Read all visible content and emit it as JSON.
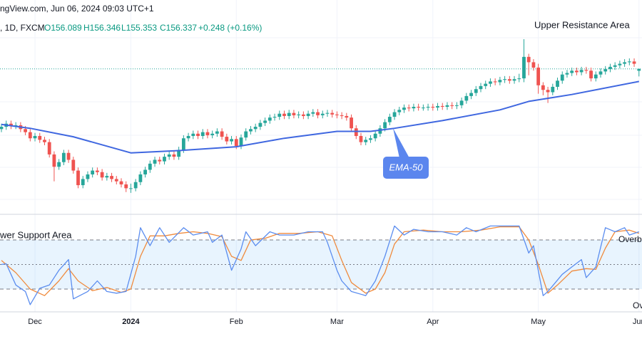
{
  "chart_data": {
    "type": "candlestick",
    "header": {
      "source": "ngView.com, Jun 06, 2024 09:03 UTC+1",
      "symbol": ", 1D, FXCM",
      "ohlc": [
        "O156.089",
        "H156.346",
        "L155.353",
        "C156.337",
        "+0.248 (+0.16%)"
      ]
    },
    "categories": [
      null,
      null,
      null,
      null,
      null,
      null,
      null,
      "Dec",
      null,
      null,
      null,
      null,
      null,
      null,
      null,
      null,
      null,
      null,
      null,
      null,
      null,
      null,
      null,
      null,
      null,
      null,
      null,
      "2024",
      null,
      null,
      null,
      null,
      null,
      null,
      null,
      null,
      null,
      null,
      null,
      null,
      null,
      null,
      null,
      null,
      null,
      null,
      null,
      null,
      null,
      "Feb",
      null,
      null,
      null,
      null,
      null,
      null,
      null,
      null,
      null,
      null,
      null,
      null,
      null,
      null,
      null,
      null,
      null,
      null,
      null,
      null,
      "Mar",
      null,
      null,
      null,
      null,
      null,
      null,
      null,
      null,
      null,
      null,
      null,
      null,
      null,
      null,
      null,
      null,
      null,
      null,
      null,
      "Apr",
      null,
      null,
      null,
      null,
      null,
      null,
      null,
      null,
      null,
      null,
      null,
      null,
      null,
      null,
      null,
      null,
      null,
      null,
      null,
      null,
      null,
      "May",
      null,
      null,
      null,
      null,
      null,
      null,
      null,
      null,
      null,
      null,
      null,
      null,
      null,
      null,
      null,
      null,
      null,
      null,
      null,
      null,
      "Jun"
    ],
    "open": [
      148.5,
      148.8,
      149.2,
      148.9,
      149.0,
      148.5,
      148.1,
      147.3,
      147.6,
      147.1,
      146.8,
      145.2,
      143.6,
      144.2,
      145.4,
      144.5,
      143.1,
      141.2,
      142.0,
      142.6,
      143.1,
      142.9,
      142.2,
      142.4,
      142.0,
      141.7,
      141.3,
      140.8,
      140.8,
      141.6,
      142.6,
      143.2,
      144.0,
      144.5,
      144.3,
      144.9,
      145.2,
      144.9,
      145.8,
      147.3,
      147.6,
      147.9,
      147.6,
      148.1,
      147.7,
      147.9,
      148.2,
      147.5,
      146.9,
      147.2,
      146.3,
      147.4,
      148.2,
      148.5,
      148.8,
      149.3,
      149.6,
      150.0,
      150.1,
      150.5,
      150.2,
      150.6,
      150.3,
      150.4,
      150.2,
      150.5,
      150.7,
      150.3,
      150.5,
      150.6,
      150.4,
      150.3,
      150.2,
      150.0,
      148.6,
      147.6,
      146.8,
      147.1,
      147.3,
      147.9,
      148.6,
      149.4,
      150.1,
      150.7,
      151.0,
      151.3,
      151.2,
      151.4,
      151.3,
      151.3,
      151.4,
      151.3,
      151.5,
      151.4,
      151.6,
      151.5,
      151.6,
      152.2,
      152.8,
      153.2,
      153.7,
      154.1,
      154.4,
      154.7,
      154.6,
      154.9,
      155.0,
      154.8,
      155.0,
      155.1,
      157.9,
      157.2,
      156.5,
      154.2,
      153.6,
      153.3,
      154.0,
      154.8,
      155.6,
      155.8,
      156.1,
      155.9,
      156.2,
      156.1,
      155.1,
      155.6,
      156.0,
      156.3,
      156.6,
      156.8,
      157.0,
      157.2,
      157.3,
      156.089
    ],
    "high": [
      149.2,
      149.6,
      149.6,
      149.4,
      149.4,
      148.9,
      148.5,
      148.0,
      148.0,
      147.5,
      147.2,
      145.6,
      144.6,
      145.8,
      145.8,
      144.9,
      143.5,
      142.4,
      143.0,
      143.5,
      143.5,
      143.3,
      142.8,
      142.8,
      142.4,
      142.1,
      141.7,
      141.4,
      142.0,
      143.0,
      143.6,
      144.4,
      144.9,
      144.9,
      145.3,
      145.6,
      145.6,
      146.2,
      147.7,
      148.0,
      148.3,
      148.3,
      148.5,
      148.5,
      148.3,
      148.6,
      148.6,
      147.9,
      147.6,
      147.6,
      147.8,
      148.6,
      148.9,
      149.2,
      149.7,
      150.0,
      150.4,
      150.5,
      150.9,
      150.9,
      151.0,
      151.0,
      150.8,
      150.8,
      150.9,
      151.1,
      151.1,
      150.9,
      151.0,
      151.0,
      150.8,
      150.7,
      150.6,
      150.4,
      149.0,
      148.0,
      147.5,
      147.7,
      148.3,
      149.0,
      149.8,
      150.5,
      151.1,
      151.4,
      151.7,
      151.7,
      151.8,
      151.8,
      151.7,
      151.8,
      151.8,
      151.9,
      151.9,
      152.0,
      152.0,
      152.0,
      152.6,
      153.2,
      153.6,
      154.1,
      154.5,
      154.8,
      155.1,
      155.1,
      155.3,
      155.4,
      155.4,
      155.4,
      155.7,
      160.2,
      158.3,
      157.6,
      157.0,
      154.6,
      154.0,
      154.4,
      155.2,
      156.0,
      156.2,
      156.5,
      156.5,
      156.6,
      156.6,
      156.5,
      156.0,
      156.4,
      156.7,
      157.0,
      157.2,
      157.4,
      157.6,
      157.7,
      157.7,
      156.346
    ],
    "low": [
      148.1,
      148.4,
      148.5,
      148.5,
      148.1,
      147.7,
      146.9,
      146.9,
      146.7,
      146.4,
      144.8,
      141.7,
      143.2,
      143.8,
      144.1,
      142.7,
      140.8,
      140.8,
      141.6,
      142.2,
      142.5,
      141.8,
      141.8,
      141.6,
      141.3,
      140.9,
      140.3,
      140.2,
      140.4,
      141.2,
      142.2,
      142.8,
      143.6,
      143.9,
      143.9,
      144.5,
      144.5,
      144.5,
      145.4,
      146.9,
      147.2,
      147.2,
      147.2,
      147.3,
      147.3,
      147.5,
      147.1,
      146.5,
      146.5,
      145.9,
      145.9,
      147.0,
      147.8,
      148.1,
      148.4,
      148.9,
      149.2,
      149.6,
      149.7,
      149.8,
      149.8,
      149.9,
      149.9,
      149.8,
      149.8,
      150.1,
      149.9,
      149.9,
      150.1,
      150.0,
      149.9,
      149.8,
      149.6,
      148.2,
      147.2,
      146.4,
      146.4,
      146.7,
      146.9,
      147.5,
      148.2,
      149.0,
      149.7,
      150.3,
      150.6,
      150.8,
      150.8,
      150.9,
      150.9,
      150.9,
      150.9,
      150.9,
      151.0,
      151.0,
      151.1,
      151.1,
      151.2,
      151.8,
      152.4,
      152.8,
      153.3,
      153.7,
      154.0,
      154.2,
      154.2,
      154.5,
      154.4,
      154.4,
      154.6,
      154.6,
      155.5,
      156.1,
      153.1,
      152.9,
      151.9,
      152.9,
      153.6,
      154.4,
      155.2,
      155.4,
      155.5,
      155.5,
      155.7,
      154.7,
      154.7,
      155.2,
      155.6,
      155.9,
      156.2,
      156.4,
      156.6,
      156.8,
      156.6,
      155.353
    ],
    "close": [
      148.8,
      149.2,
      148.9,
      149.0,
      148.5,
      148.1,
      147.3,
      147.6,
      147.1,
      146.8,
      145.2,
      143.6,
      144.2,
      145.4,
      144.5,
      143.1,
      141.2,
      142.0,
      142.6,
      143.1,
      142.9,
      142.2,
      142.4,
      142.0,
      141.7,
      141.3,
      140.8,
      140.8,
      141.6,
      142.6,
      143.2,
      144.0,
      144.5,
      144.3,
      144.9,
      145.2,
      144.9,
      145.8,
      147.3,
      147.6,
      147.9,
      147.6,
      148.1,
      147.7,
      147.9,
      148.2,
      147.5,
      146.9,
      147.2,
      146.3,
      147.4,
      148.2,
      148.5,
      148.8,
      149.3,
      149.6,
      150.0,
      150.1,
      150.5,
      150.2,
      150.6,
      150.3,
      150.4,
      150.2,
      150.5,
      150.7,
      150.3,
      150.5,
      150.6,
      150.4,
      150.3,
      150.2,
      150.0,
      148.6,
      147.6,
      146.8,
      147.1,
      147.3,
      147.9,
      148.6,
      149.4,
      150.1,
      150.7,
      151.0,
      151.3,
      151.2,
      151.4,
      151.3,
      151.3,
      151.4,
      151.3,
      151.5,
      151.4,
      151.6,
      151.5,
      151.6,
      152.2,
      152.8,
      153.2,
      153.7,
      154.1,
      154.4,
      154.7,
      154.6,
      154.9,
      155.0,
      154.8,
      155.0,
      155.1,
      157.9,
      157.2,
      156.5,
      154.2,
      153.6,
      153.3,
      154.0,
      154.8,
      155.6,
      155.8,
      156.1,
      155.9,
      156.2,
      156.1,
      155.1,
      155.6,
      156.0,
      156.3,
      156.6,
      156.8,
      157.0,
      157.2,
      157.3,
      157.0,
      156.337
    ],
    "up_color": "#26a69a",
    "down_color": "#ef5350",
    "ylim": [
      137.5,
      165.3
    ],
    "grid": true,
    "last_price_line": true,
    "ema": {
      "name": "EMA-50",
      "color": "#3f67e0",
      "x": [
        0,
        6,
        15,
        27,
        37,
        49,
        59,
        70,
        77,
        82,
        92,
        104,
        110,
        119,
        133
      ],
      "values": [
        149.1,
        148.6,
        147.5,
        145.4,
        145.7,
        146.2,
        147.3,
        148.2,
        148.2,
        148.6,
        149.6,
        151.0,
        152.1,
        153.0,
        154.7
      ]
    },
    "annotations": [
      "Upper Resistance Area",
      "wer Support Area"
    ],
    "stochastic": {
      "ylim": [
        0,
        100
      ],
      "levels": [
        80,
        50,
        20
      ],
      "labels": [
        "Overb",
        "Ove"
      ],
      "k": {
        "color": "#5b8def",
        "x": [
          0,
          1,
          3,
          5,
          6,
          8,
          10,
          12,
          14,
          15,
          18,
          20,
          22,
          24,
          26,
          28,
          29,
          31,
          33,
          35,
          38,
          40,
          43,
          44,
          46,
          48,
          50,
          51,
          53,
          56,
          58,
          61,
          64,
          67,
          68,
          70,
          71,
          73,
          76,
          78,
          80,
          82,
          84,
          86,
          89,
          92,
          95,
          97,
          99,
          102,
          105,
          108,
          110,
          111,
          113,
          114,
          117,
          119,
          121,
          122,
          124,
          126,
          128,
          130,
          131,
          133
        ],
        "values": [
          50,
          51,
          25,
          17,
          1,
          21,
          25,
          43,
          56,
          8,
          17,
          30,
          17,
          15,
          17,
          60,
          95,
          73,
          95,
          77,
          95,
          86,
          90,
          77,
          86,
          43,
          69,
          90,
          73,
          90,
          86,
          86,
          90,
          90,
          77,
          43,
          30,
          17,
          12,
          30,
          60,
          97,
          86,
          93,
          90,
          90,
          86,
          95,
          90,
          97,
          97,
          97,
          64,
          73,
          12,
          17,
          38,
          47,
          56,
          34,
          47,
          95,
          90,
          95,
          86,
          90
        ]
      },
      "d": {
        "color": "#f08a3c",
        "x": [
          0,
          3,
          6,
          9,
          12,
          14,
          16,
          19,
          22,
          25,
          27,
          29,
          31,
          34,
          37,
          40,
          43,
          46,
          48,
          50,
          52,
          55,
          58,
          62,
          66,
          69,
          71,
          73,
          76,
          78,
          80,
          82,
          84,
          88,
          92,
          96,
          100,
          104,
          108,
          110,
          112,
          114,
          116,
          119,
          122,
          124,
          126,
          128,
          131,
          133
        ],
        "values": [
          55,
          40,
          20,
          12,
          30,
          45,
          30,
          18,
          22,
          16,
          20,
          60,
          85,
          85,
          88,
          90,
          88,
          84,
          60,
          55,
          80,
          82,
          88,
          88,
          90,
          85,
          55,
          28,
          15,
          20,
          40,
          75,
          90,
          92,
          90,
          90,
          92,
          96,
          96,
          80,
          50,
          15,
          25,
          42,
          45,
          44,
          70,
          90,
          92,
          88
        ]
      }
    }
  }
}
